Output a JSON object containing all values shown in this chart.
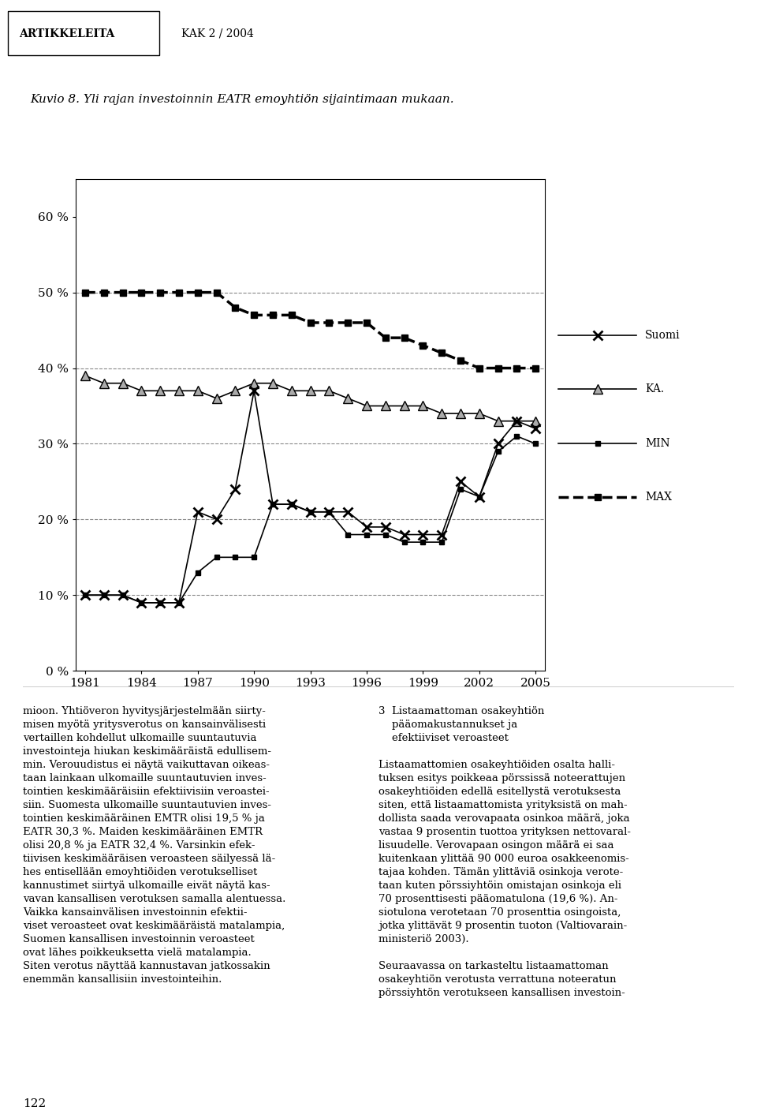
{
  "title": "Kuvio 8. Yli rajan investoinnin EATR emoyhtiön sijaintimaan mukaan.",
  "header": "ARTIKKELEITA    KAK 2 / 2004",
  "years": [
    1981,
    1982,
    1983,
    1984,
    1985,
    1986,
    1987,
    1988,
    1989,
    1990,
    1991,
    1992,
    1993,
    1994,
    1995,
    1996,
    1997,
    1998,
    1999,
    2000,
    2001,
    2002,
    2003,
    2004,
    2005
  ],
  "suomi": [
    10,
    10,
    10,
    9,
    9,
    9,
    21,
    20,
    24,
    37,
    22,
    22,
    21,
    21,
    21,
    19,
    19,
    18,
    18,
    18,
    25,
    23,
    30,
    33,
    32
  ],
  "ka": [
    39,
    38,
    38,
    37,
    37,
    37,
    37,
    36,
    37,
    38,
    38,
    37,
    37,
    37,
    36,
    35,
    35,
    35,
    35,
    34,
    34,
    34,
    33,
    33,
    33
  ],
  "min": [
    10,
    10,
    10,
    9,
    9,
    9,
    13,
    15,
    15,
    15,
    22,
    22,
    21,
    21,
    18,
    18,
    18,
    17,
    17,
    17,
    24,
    23,
    29,
    31,
    30
  ],
  "max": [
    50,
    50,
    50,
    50,
    50,
    50,
    50,
    50,
    48,
    47,
    47,
    47,
    46,
    46,
    46,
    46,
    44,
    44,
    43,
    42,
    41,
    40,
    40,
    40,
    40
  ],
  "ylim": [
    0,
    65
  ],
  "yticks": [
    0,
    10,
    20,
    30,
    40,
    50,
    60
  ],
  "ytick_labels": [
    "0 %",
    "10 %",
    "20 %",
    "30 %",
    "40 %",
    "50 %",
    "60 %"
  ],
  "xticks": [
    1981,
    1984,
    1987,
    1990,
    1993,
    1996,
    1999,
    2002,
    2005
  ],
  "grid_color": "#888888",
  "line_color": "#000000",
  "background_color": "#ffffff",
  "legend_labels": [
    "Suomi",
    "KA.",
    "MIN",
    "MAX"
  ]
}
